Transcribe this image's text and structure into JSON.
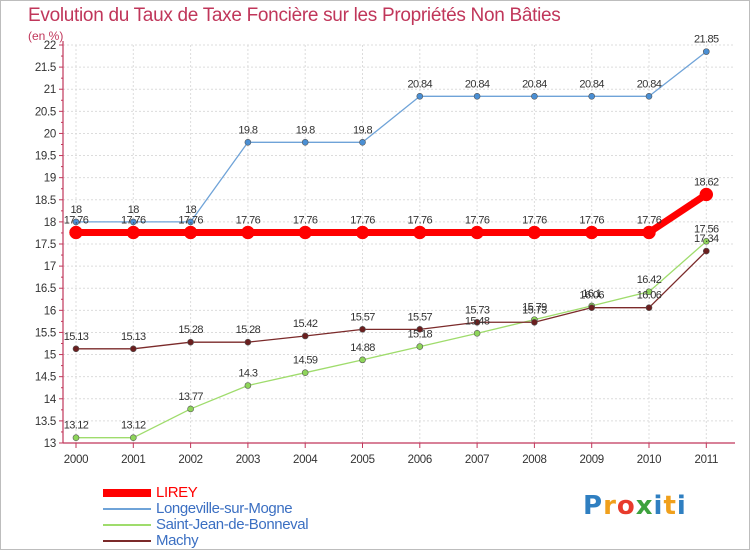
{
  "title": "Evolution du Taux de Taxe Foncière sur les Propriétés Non Bâties",
  "subtitle": "(en %)",
  "logo": "Proxiti",
  "chart_data": {
    "type": "line",
    "title": "Evolution du Taux de Taxe Foncière sur les Propriétés Non Bâties",
    "ylabel": "(en %)",
    "xlabel": "",
    "x": [
      "2000",
      "2001",
      "2002",
      "2003",
      "2004",
      "2005",
      "2006",
      "2007",
      "2008",
      "2009",
      "2010",
      "2011"
    ],
    "ylim": [
      13,
      22
    ],
    "yticks": [
      "13",
      "13.5",
      "14",
      "14.5",
      "15",
      "15.5",
      "16",
      "16.5",
      "17",
      "17.5",
      "18",
      "18.5",
      "19",
      "19.5",
      "20",
      "20.5",
      "21",
      "21.5",
      "22"
    ],
    "grid": true,
    "legend_position": "bottom-left",
    "series": [
      {
        "name": "LIREY",
        "color": "#ff0000",
        "values": [
          17.76,
          17.76,
          17.76,
          17.76,
          17.76,
          17.76,
          17.76,
          17.76,
          17.76,
          17.76,
          17.76,
          18.62
        ],
        "labels": [
          "17.76",
          "17.76",
          "17.76",
          "17.76",
          "17.76",
          "17.76",
          "17.76",
          "17.76",
          "17.76",
          "17.76",
          "17.76",
          "18.62"
        ]
      },
      {
        "name": "Longeville-sur-Mogne",
        "color": "#6fa3d8",
        "values": [
          18,
          18,
          18,
          19.8,
          19.8,
          19.8,
          20.84,
          20.84,
          20.84,
          20.84,
          20.84,
          21.85
        ],
        "labels": [
          "18",
          "18",
          "18",
          "19.8",
          "19.8",
          "19.8",
          "20.84",
          "20.84",
          "20.84",
          "20.84",
          "20.84",
          "21.85"
        ]
      },
      {
        "name": "Saint-Jean-de-Bonneval",
        "color": "#9fdc6c",
        "values": [
          13.12,
          13.12,
          13.77,
          14.3,
          14.59,
          14.88,
          15.18,
          15.48,
          15.79,
          16.1,
          16.42,
          17.56
        ],
        "labels": [
          "13.12",
          "13.12",
          "13.77",
          "14.3",
          "14.59",
          "14.88",
          "15.18",
          "15.48",
          "15.79",
          "16.1",
          "16.42",
          "17.56"
        ]
      },
      {
        "name": "Machy",
        "color": "#7b2a2a",
        "values": [
          15.13,
          15.13,
          15.28,
          15.28,
          15.42,
          15.57,
          15.57,
          15.73,
          15.73,
          16.06,
          16.06,
          17.34
        ],
        "labels": [
          "15.13",
          "15.13",
          "15.28",
          "15.28",
          "15.42",
          "15.57",
          "15.57",
          "15.73",
          "15.73",
          "16.06",
          "16.06",
          "17.34"
        ]
      }
    ]
  }
}
